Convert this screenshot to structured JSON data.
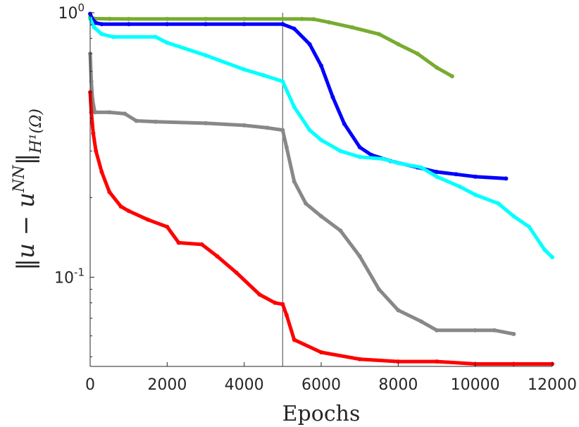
{
  "chart_data": {
    "type": "scatter",
    "xlabel": "Epochs",
    "ylabel": "||u − u^NN||_H¹(Ω)",
    "ylabel_main": "‖u − u",
    "ylabel_sup": "NN",
    "ylabel_close": "‖",
    "ylabel_sub": "H¹(Ω)",
    "xlim": [
      0,
      12000
    ],
    "ylim": [
      0.046,
      1.0
    ],
    "yscale": "log",
    "xticks": [
      0,
      2000,
      4000,
      6000,
      8000,
      10000,
      12000
    ],
    "xtick_labels": [
      "0",
      "2000",
      "4000",
      "6000",
      "8000",
      "10000",
      "12000"
    ],
    "yticks": [
      0.1,
      1.0
    ],
    "ytick_labels": [
      "10^-1",
      "10^0"
    ],
    "ytick_base": [
      "10",
      "10"
    ],
    "ytick_exp": [
      "-1",
      "0"
    ],
    "vertical_line_x": 5000,
    "grid": false,
    "series": [
      {
        "color": "#77ac30",
        "points": [
          [
            0,
            0.96
          ],
          [
            100,
            0.95
          ],
          [
            500,
            0.948
          ],
          [
            1000,
            0.947
          ],
          [
            2000,
            0.947
          ],
          [
            3000,
            0.947
          ],
          [
            4000,
            0.947
          ],
          [
            5000,
            0.947
          ],
          [
            5500,
            0.947
          ],
          [
            5800,
            0.945
          ],
          [
            6200,
            0.92
          ],
          [
            6800,
            0.88
          ],
          [
            7500,
            0.83
          ],
          [
            8000,
            0.76
          ],
          [
            8500,
            0.7
          ],
          [
            9000,
            0.62
          ],
          [
            9400,
            0.575
          ]
        ]
      },
      {
        "color": "#0000ff",
        "points": [
          [
            0,
            0.99
          ],
          [
            50,
            0.95
          ],
          [
            150,
            0.915
          ],
          [
            300,
            0.905
          ],
          [
            1000,
            0.905
          ],
          [
            2000,
            0.905
          ],
          [
            3000,
            0.905
          ],
          [
            4000,
            0.905
          ],
          [
            5000,
            0.905
          ],
          [
            5300,
            0.87
          ],
          [
            5700,
            0.76
          ],
          [
            6000,
            0.63
          ],
          [
            6300,
            0.48
          ],
          [
            6600,
            0.38
          ],
          [
            7000,
            0.31
          ],
          [
            7300,
            0.29
          ],
          [
            7800,
            0.275
          ],
          [
            8500,
            0.26
          ],
          [
            9000,
            0.25
          ],
          [
            9500,
            0.245
          ],
          [
            10000,
            0.24
          ],
          [
            10800,
            0.236
          ]
        ]
      },
      {
        "color": "#00ffff",
        "points": [
          [
            0,
            0.95
          ],
          [
            100,
            0.88
          ],
          [
            300,
            0.83
          ],
          [
            600,
            0.81
          ],
          [
            1700,
            0.81
          ],
          [
            2000,
            0.77
          ],
          [
            3000,
            0.69
          ],
          [
            4000,
            0.61
          ],
          [
            4500,
            0.58
          ],
          [
            5000,
            0.55
          ],
          [
            5300,
            0.44
          ],
          [
            5700,
            0.36
          ],
          [
            6000,
            0.33
          ],
          [
            6500,
            0.3
          ],
          [
            7000,
            0.285
          ],
          [
            7600,
            0.28
          ],
          [
            8000,
            0.27
          ],
          [
            8600,
            0.26
          ],
          [
            9000,
            0.24
          ],
          [
            9600,
            0.22
          ],
          [
            10000,
            0.205
          ],
          [
            10600,
            0.19
          ],
          [
            11000,
            0.17
          ],
          [
            11400,
            0.155
          ],
          [
            11800,
            0.127
          ],
          [
            12000,
            0.119
          ]
        ]
      },
      {
        "color": "#888888",
        "points": [
          [
            0,
            0.7
          ],
          [
            30,
            0.55
          ],
          [
            60,
            0.47
          ],
          [
            120,
            0.42
          ],
          [
            500,
            0.42
          ],
          [
            900,
            0.415
          ],
          [
            1200,
            0.39
          ],
          [
            1700,
            0.387
          ],
          [
            3000,
            0.382
          ],
          [
            4000,
            0.375
          ],
          [
            4600,
            0.367
          ],
          [
            5000,
            0.36
          ],
          [
            5100,
            0.31
          ],
          [
            5300,
            0.23
          ],
          [
            5600,
            0.19
          ],
          [
            6000,
            0.17
          ],
          [
            6500,
            0.15
          ],
          [
            7000,
            0.12
          ],
          [
            7500,
            0.09
          ],
          [
            8000,
            0.075
          ],
          [
            8600,
            0.068
          ],
          [
            9000,
            0.063
          ],
          [
            10000,
            0.063
          ],
          [
            10500,
            0.063
          ],
          [
            11000,
            0.061
          ]
        ]
      },
      {
        "color": "#ff0000",
        "points": [
          [
            0,
            0.5
          ],
          [
            30,
            0.42
          ],
          [
            80,
            0.35
          ],
          [
            150,
            0.3
          ],
          [
            300,
            0.25
          ],
          [
            500,
            0.21
          ],
          [
            800,
            0.185
          ],
          [
            1000,
            0.178
          ],
          [
            1500,
            0.165
          ],
          [
            2000,
            0.155
          ],
          [
            2300,
            0.135
          ],
          [
            2900,
            0.133
          ],
          [
            3300,
            0.12
          ],
          [
            3800,
            0.104
          ],
          [
            4400,
            0.086
          ],
          [
            4800,
            0.08
          ],
          [
            5000,
            0.079
          ],
          [
            5100,
            0.072
          ],
          [
            5300,
            0.058
          ],
          [
            6000,
            0.052
          ],
          [
            7000,
            0.049
          ],
          [
            8000,
            0.048
          ],
          [
            9000,
            0.048
          ],
          [
            10000,
            0.047
          ],
          [
            11000,
            0.047
          ],
          [
            12000,
            0.047
          ]
        ]
      }
    ]
  }
}
